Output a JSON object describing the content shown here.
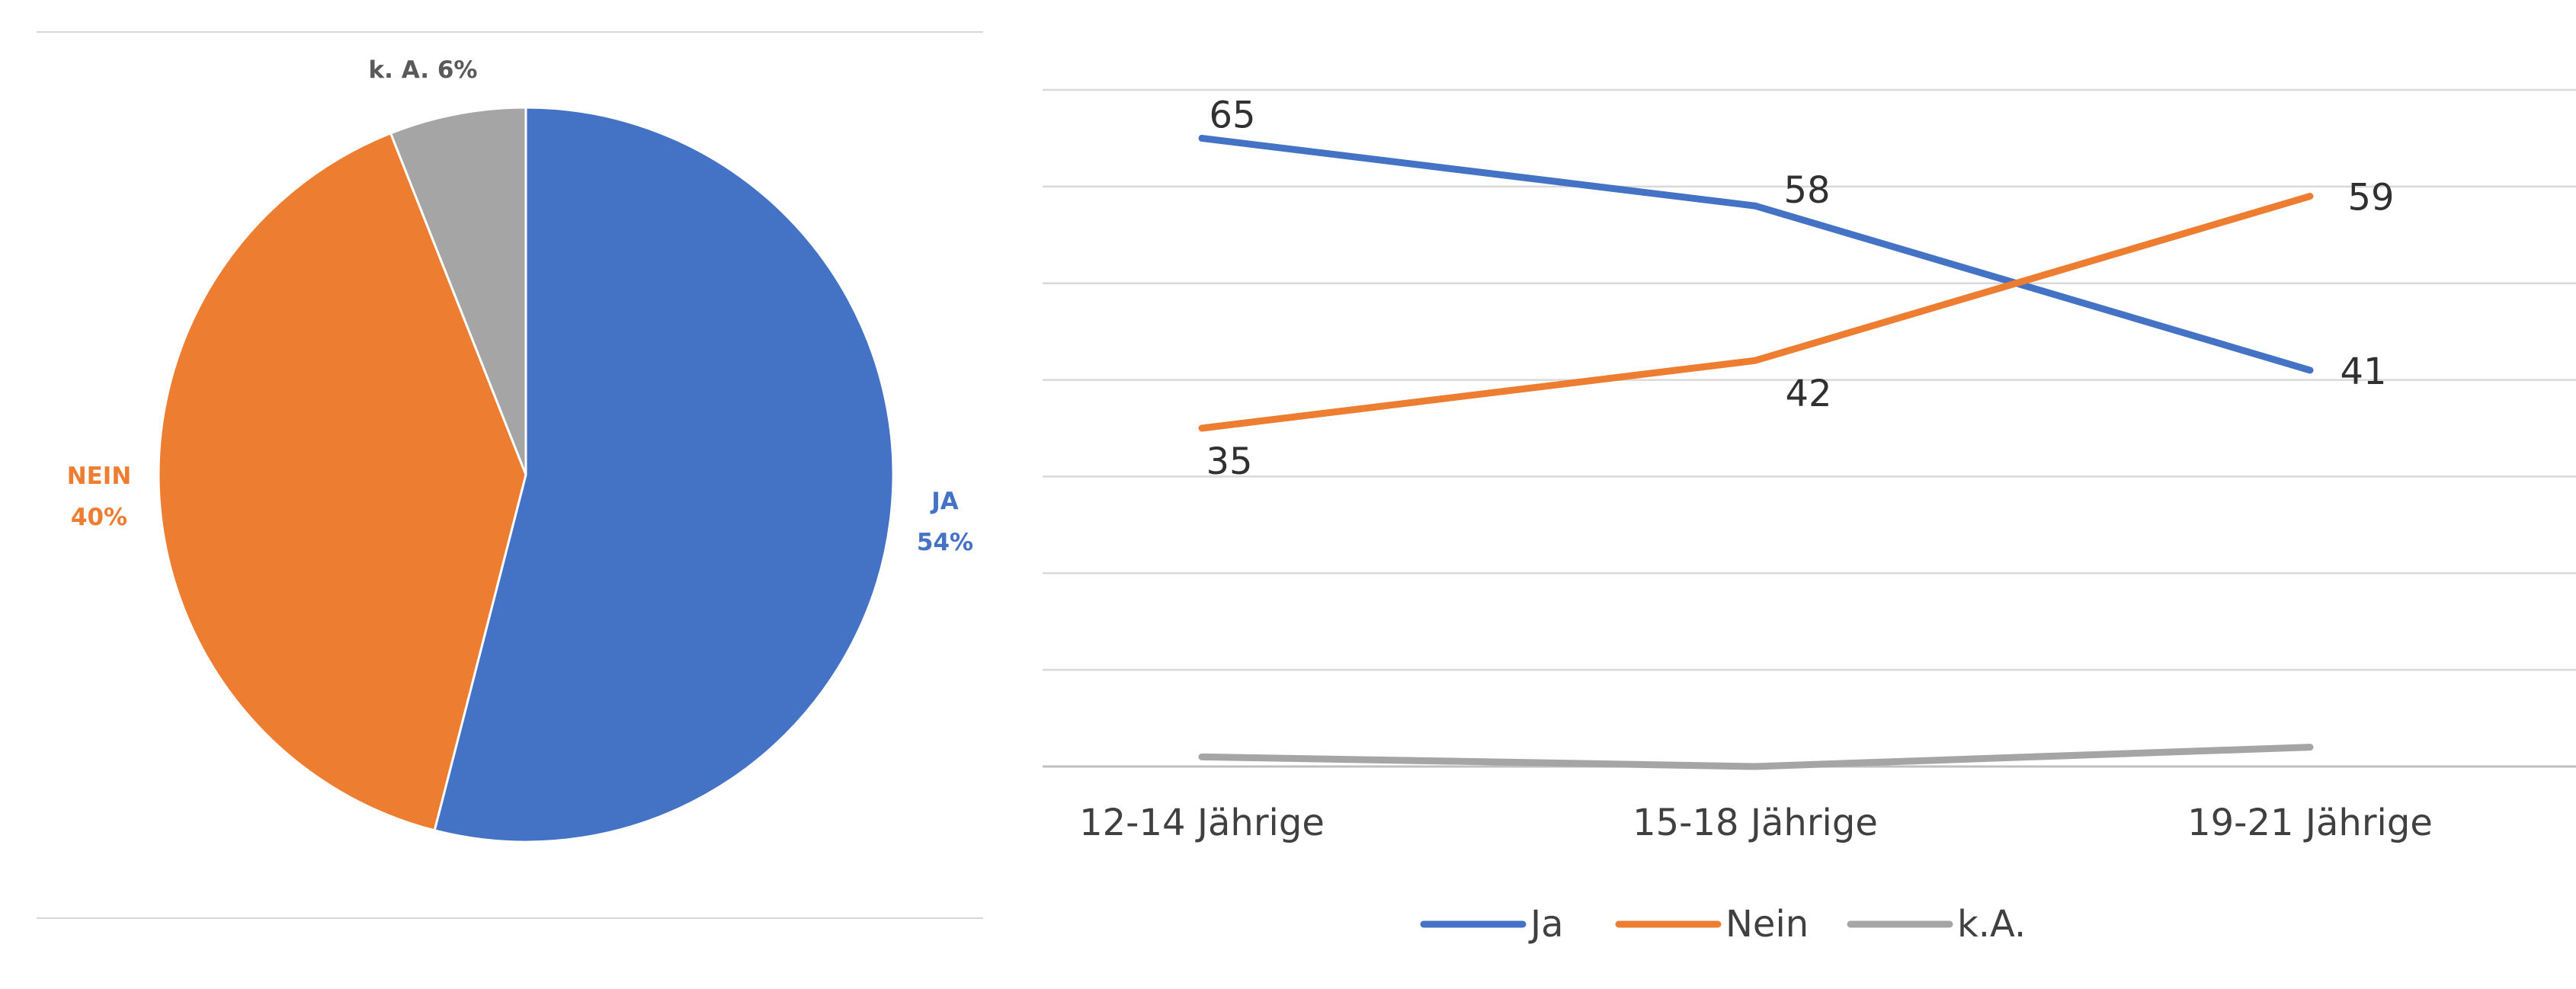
{
  "chart_data": [
    {
      "type": "pie",
      "title": "",
      "slices": [
        {
          "label": "JA",
          "value": 54,
          "display": "54%",
          "color": "#4472C4"
        },
        {
          "label": "NEIN",
          "value": 40,
          "display": "40%",
          "color": "#ED7D31"
        },
        {
          "label": "k. A.",
          "value": 6,
          "display": "6%",
          "color": "#A5A5A5"
        }
      ],
      "separator_lines": true
    },
    {
      "type": "line",
      "title": "",
      "xlabel": "",
      "ylabel": "",
      "categories": [
        "12-14 Jährige",
        "15-18 Jährige",
        "19-21 Jährige"
      ],
      "ylim": [
        0,
        70
      ],
      "grid": true,
      "legend": "bottom",
      "series": [
        {
          "name": "Ja",
          "values": [
            65,
            58,
            41
          ],
          "labels": [
            "65",
            "58",
            "41"
          ],
          "color": "#4472C4"
        },
        {
          "name": "Nein",
          "values": [
            35,
            42,
            59
          ],
          "labels": [
            "35",
            "42",
            "59"
          ],
          "color": "#ED7D31"
        },
        {
          "name": "k.A.",
          "values": [
            1,
            0,
            2
          ],
          "labels": [
            "",
            "",
            ""
          ],
          "color": "#A5A5A5"
        }
      ]
    }
  ]
}
